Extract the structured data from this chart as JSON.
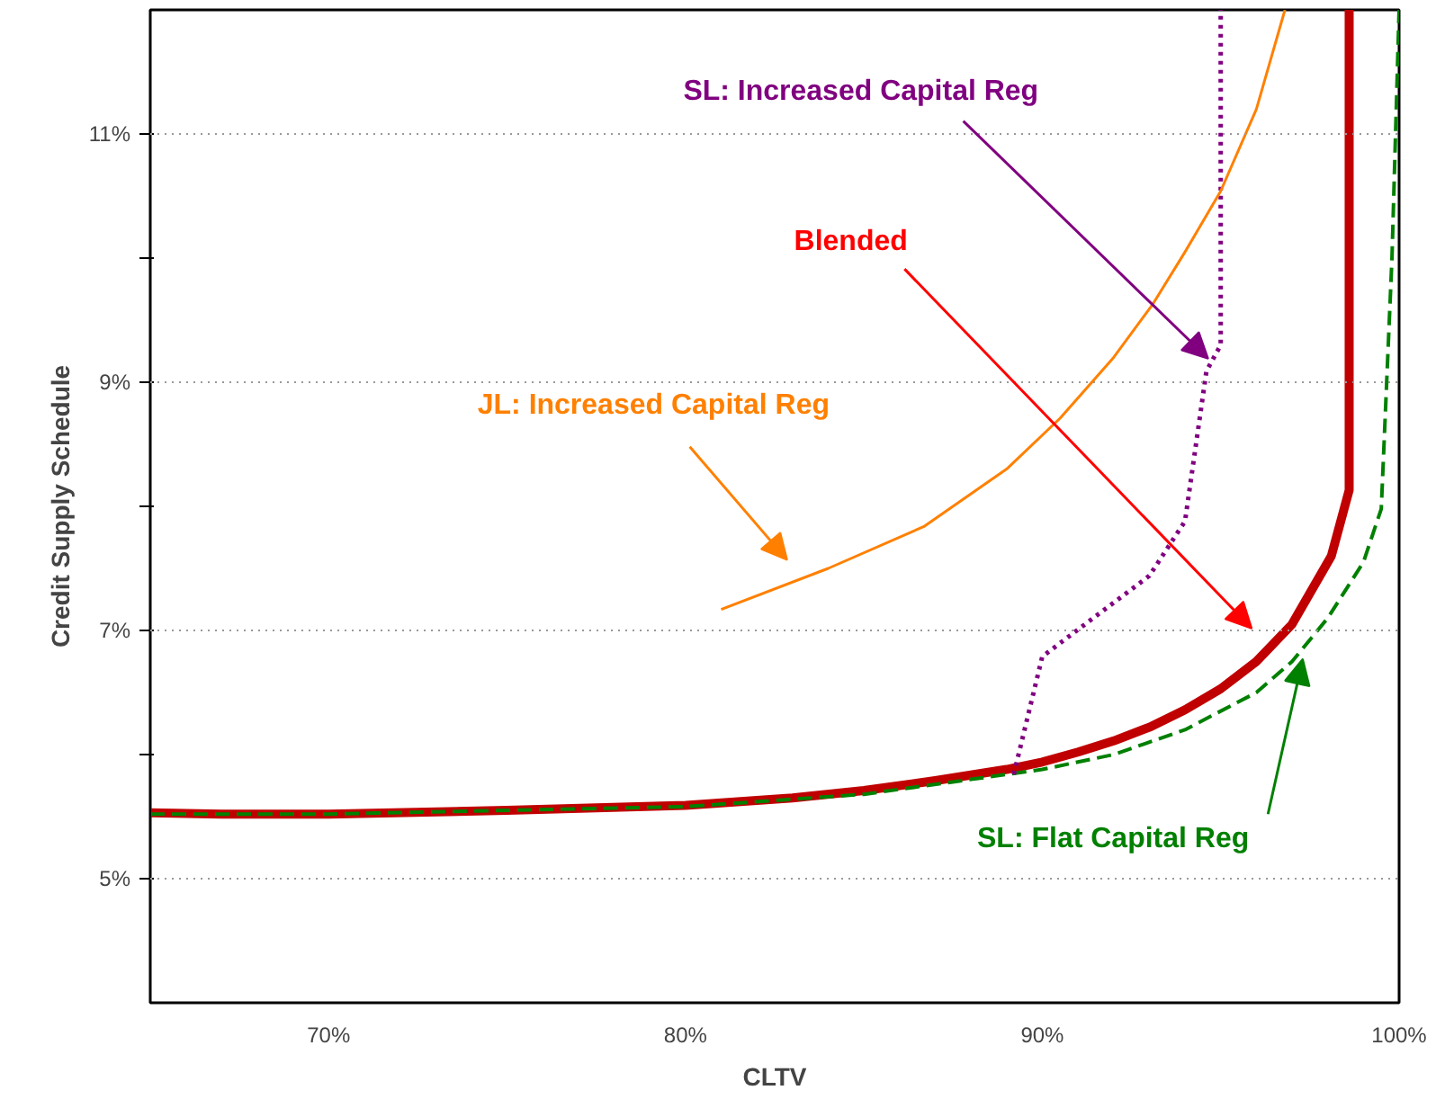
{
  "chart_data": {
    "type": "line",
    "xlabel": "CLTV",
    "ylabel": "Credit Supply Schedule",
    "xlim": [
      65,
      100
    ],
    "ylim": [
      4,
      12
    ],
    "xticks": [
      {
        "value": 70,
        "label": "70%"
      },
      {
        "value": 80,
        "label": "80%"
      },
      {
        "value": 90,
        "label": "90%"
      },
      {
        "value": 100,
        "label": "100%"
      }
    ],
    "yticks": [
      {
        "value": 5,
        "label": "5%"
      },
      {
        "value": 6,
        "label": null
      },
      {
        "value": 7,
        "label": "7%"
      },
      {
        "value": 8,
        "label": null
      },
      {
        "value": 9,
        "label": "9%"
      },
      {
        "value": 10,
        "label": null
      },
      {
        "value": 11,
        "label": "11%"
      }
    ],
    "grid": "y",
    "series": [
      {
        "color": "#c00000",
        "line_style": "solid",
        "x": [
          65,
          67,
          70,
          75,
          80,
          83,
          85,
          87,
          89,
          90,
          91,
          92,
          93,
          94,
          95,
          96,
          97,
          98.1,
          98.6,
          98.6
        ],
        "values": [
          5.53,
          5.52,
          5.52,
          5.55,
          5.59,
          5.65,
          5.71,
          5.79,
          5.88,
          5.94,
          6.02,
          6.11,
          6.22,
          6.36,
          6.53,
          6.75,
          7.05,
          7.6,
          8.13,
          12
        ]
      },
      {
        "color": "#008000",
        "line_style": "dashed",
        "x": [
          65,
          70,
          80,
          85,
          88,
          90,
          92,
          94,
          96,
          97,
          98,
          99,
          99.5,
          99.8,
          100
        ],
        "values": [
          5.52,
          5.52,
          5.58,
          5.68,
          5.8,
          5.88,
          6.0,
          6.2,
          6.5,
          6.75,
          7.1,
          7.55,
          7.98,
          10,
          12
        ]
      },
      {
        "color": "#800080",
        "line_style": "dotted",
        "x": [
          89.2,
          90.0,
          93.0,
          94.0,
          94.6,
          95.0,
          95.0
        ],
        "values": [
          5.84,
          6.79,
          7.44,
          7.88,
          9.09,
          9.3,
          12
        ]
      },
      {
        "color": "#ff8000",
        "line_style": "solid",
        "x": [
          81,
          84,
          86.7,
          89,
          90.5,
          92,
          93.1,
          94,
          95,
          96,
          96.8
        ],
        "values": [
          7.17,
          7.5,
          7.84,
          8.3,
          8.71,
          9.2,
          9.63,
          10.05,
          10.54,
          11.2,
          12
        ]
      }
    ],
    "annotations": [
      "Blended",
      {
        "text": "SL: Flat Capital Reg",
        "x": 97.3,
        "y": 6.77
      },
      {
        "text": "SL: Increased Capital Reg",
        "x": 94.65,
        "y": 9.19
      },
      "JL: Increased Capital Reg"
    ]
  }
}
